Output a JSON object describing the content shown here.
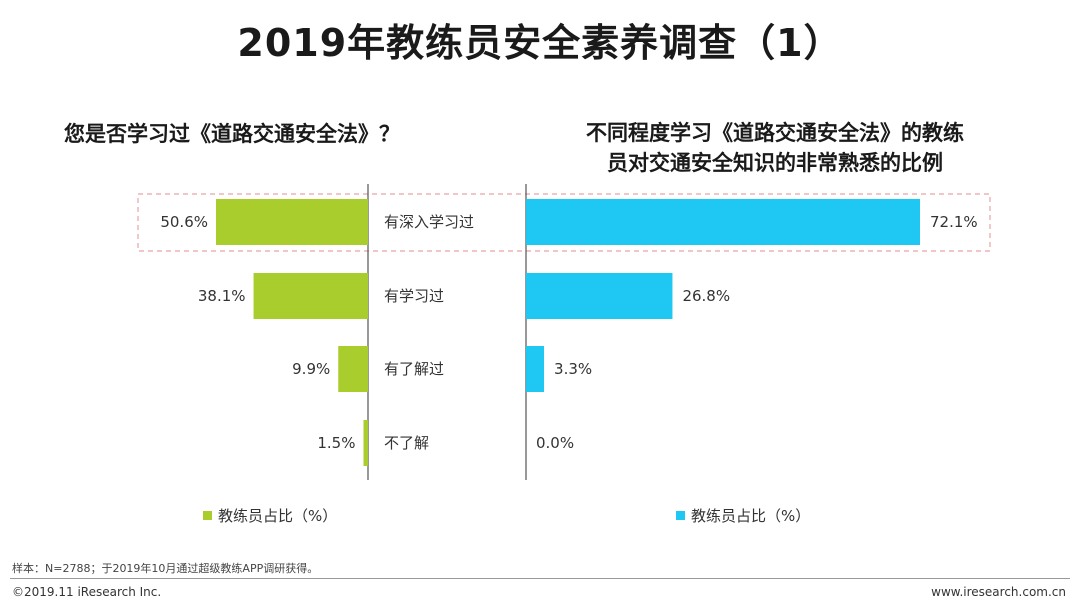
{
  "page": {
    "title": "2019年教练员安全素养调查（1）",
    "note": "样本：N=2788；于2019年10月通过超级教练APP调研获得。",
    "copyright": "©2019.11 iResearch Inc.",
    "website": "www.iresearch.com.cn"
  },
  "colors": {
    "left_bar": "#a8cd2c",
    "right_bar": "#1fc8f2",
    "highlight_border": "#e8a3a8"
  },
  "chart_data": [
    {
      "type": "bar",
      "orientation": "horizontal",
      "title": "您是否学习过《道路交通安全法》？",
      "categories": [
        "有深入学习过",
        "有学习过",
        "有了解过",
        "不了解"
      ],
      "values": [
        50.6,
        38.1,
        9.9,
        1.5
      ],
      "value_labels": [
        "50.6%",
        "38.1%",
        "9.9%",
        "1.5%"
      ],
      "legend": "教练员占比（%）",
      "xlim": [
        0,
        100
      ],
      "grid": false
    },
    {
      "type": "bar",
      "orientation": "horizontal",
      "title": "不同程度学习《道路交通安全法》的教练员对交通安全知识的非常熟悉的比例",
      "title_lines": [
        "不同程度学习《道路交通安全法》的教练",
        "员对交通安全知识的非常熟悉的比例"
      ],
      "categories": [
        "有深入学习过",
        "有学习过",
        "有了解过",
        "不了解"
      ],
      "values": [
        72.1,
        26.8,
        3.3,
        0.0
      ],
      "value_labels": [
        "72.1%",
        "26.8%",
        "3.3%",
        "0.0%"
      ],
      "legend": "教练员占比（%）",
      "xlim": [
        0,
        100
      ],
      "grid": false
    }
  ]
}
